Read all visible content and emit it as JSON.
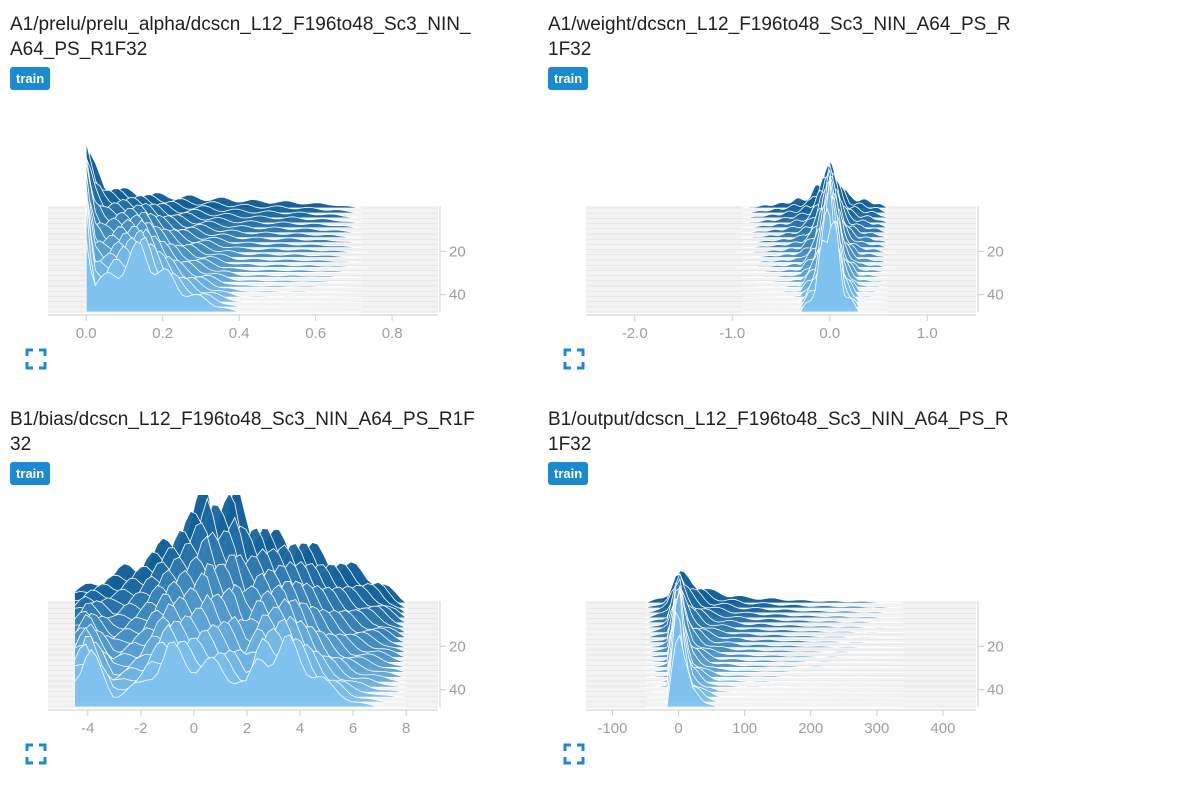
{
  "colors": {
    "accent": "#1c8ad0",
    "dark_fill": "#0c5a93",
    "light_fill": "#7fc2ef",
    "tick": "#9e9e9e"
  },
  "icons": {
    "expand": "fullscreen-expand-icon"
  },
  "chart_data": [
    {
      "type": "histogram",
      "title": "A1/prelu/prelu_alpha/dcscn_L12_F196to48_Sc3_NIN_A64_PS_R1F32",
      "run_tag": "train",
      "x_ticks": [
        "0.0",
        "0.2",
        "0.4",
        "0.6",
        "0.8"
      ],
      "x_range": [
        -0.1,
        0.92
      ],
      "y_ticks": [
        "20",
        "40"
      ],
      "steps": [
        0,
        48
      ],
      "curves": {
        "front": {
          "x": [
            0.0,
            0.02,
            0.05,
            0.1,
            0.15,
            0.2,
            0.25,
            0.3,
            0.35,
            0.4
          ],
          "y": [
            0.85,
            0.25,
            0.28,
            0.45,
            0.55,
            0.35,
            0.2,
            0.12,
            0.05,
            0
          ]
        },
        "back": {
          "x": [
            0.0,
            0.02,
            0.05,
            0.1,
            0.15,
            0.25,
            0.35,
            0.45,
            0.55,
            0.65,
            0.72
          ],
          "y": [
            0.5,
            0.35,
            0.2,
            0.15,
            0.12,
            0.1,
            0.08,
            0.06,
            0.05,
            0.03,
            0.0
          ]
        }
      }
    },
    {
      "type": "histogram",
      "title": "A1/weight/dcscn_L12_F196to48_Sc3_NIN_A64_PS_R1F32",
      "run_tag": "train",
      "x_ticks": [
        "-2.0",
        "-1.0",
        "0.0",
        "1.0"
      ],
      "x_range": [
        -2.5,
        1.5
      ],
      "y_ticks": [
        "20",
        "40"
      ],
      "steps": [
        0,
        48
      ],
      "curves": {
        "front": {
          "x": [
            -0.3,
            -0.15,
            0.0,
            0.15,
            0.3
          ],
          "y": [
            0,
            0.2,
            0.95,
            0.2,
            0
          ]
        },
        "back": {
          "x": [
            -0.9,
            -0.5,
            -0.2,
            0.0,
            0.2,
            0.5,
            0.6
          ],
          "y": [
            0,
            0.04,
            0.1,
            0.35,
            0.1,
            0.04,
            0
          ]
        }
      }
    },
    {
      "type": "histogram",
      "title": "B1/bias/dcscn_L12_F196to48_Sc3_NIN_A64_PS_R1F32",
      "run_tag": "train",
      "x_ticks": [
        "-4",
        "-2",
        "0",
        "2",
        "4",
        "6",
        "8"
      ],
      "x_range": [
        -5.5,
        9.2
      ],
      "y_ticks": [
        "20",
        "40"
      ],
      "steps": [
        0,
        48
      ],
      "curves": {
        "front": {
          "x": [
            -4.5,
            -4,
            -3.5,
            -3,
            -2,
            -1,
            0,
            1,
            2,
            2.5,
            3,
            3.5,
            4,
            5,
            6,
            7
          ],
          "y": [
            0.3,
            0.5,
            0.3,
            0.1,
            0.2,
            0.5,
            0.4,
            0.35,
            0.2,
            0.45,
            0.5,
            0.55,
            0.45,
            0.2,
            0.05,
            0
          ]
        },
        "back": {
          "x": [
            -4.5,
            -3,
            -2,
            -1,
            0,
            0.5,
            1,
            1.5,
            2,
            3,
            4,
            5,
            6,
            7,
            8
          ],
          "y": [
            0.1,
            0.25,
            0.35,
            0.5,
            0.75,
            0.95,
            0.8,
            0.9,
            0.7,
            0.55,
            0.5,
            0.4,
            0.3,
            0.2,
            0.0
          ]
        }
      }
    },
    {
      "type": "histogram",
      "title": "B1/output/dcscn_L12_F196to48_Sc3_NIN_A64_PS_R1F32",
      "run_tag": "train",
      "x_ticks": [
        "-100",
        "0",
        "100",
        "200",
        "300",
        "400"
      ],
      "x_range": [
        -140,
        450
      ],
      "y_ticks": [
        "20",
        "40"
      ],
      "steps": [
        0,
        48
      ],
      "curves": {
        "front": {
          "x": [
            -15,
            -8,
            0,
            10,
            20,
            40,
            60
          ],
          "y": [
            0,
            0.6,
            0.95,
            0.4,
            0.15,
            0.05,
            0
          ]
        },
        "back": {
          "x": [
            -50,
            -20,
            0,
            20,
            50,
            100,
            200,
            300,
            340
          ],
          "y": [
            0,
            0.06,
            0.25,
            0.2,
            0.1,
            0.05,
            0.02,
            0.01,
            0
          ]
        }
      }
    }
  ]
}
